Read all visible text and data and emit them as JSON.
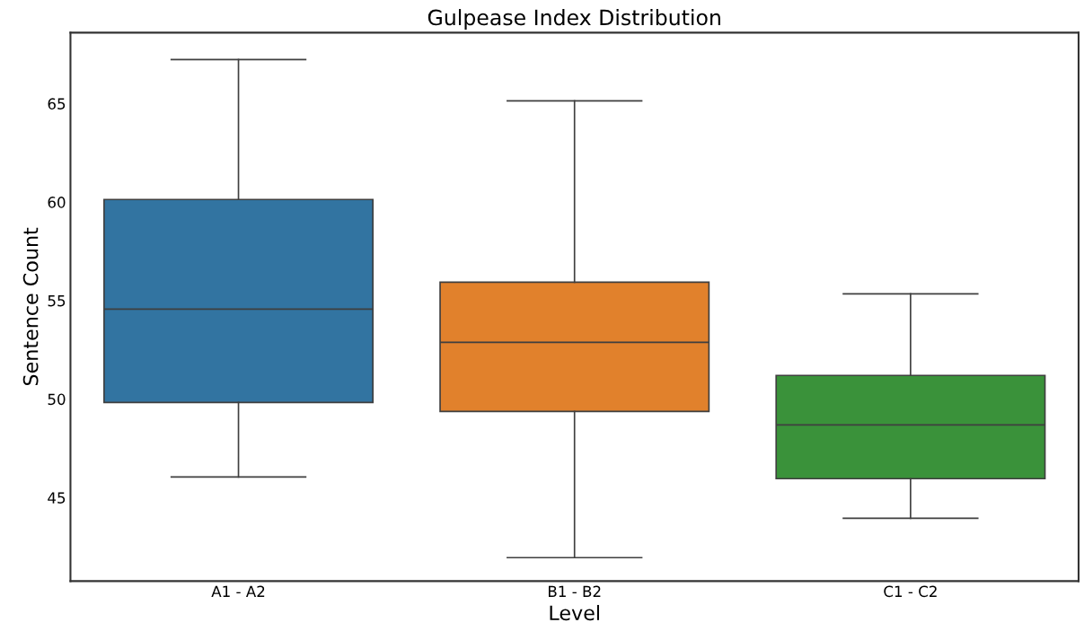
{
  "chart_data": {
    "type": "box",
    "title": "Gulpease Index Distribution",
    "xlabel": "Level",
    "ylabel": "Sentence Count",
    "categories": [
      "A1 - A2",
      "B1 - B2",
      "C1 - C2"
    ],
    "colors": [
      "#3274a1",
      "#e1812c",
      "#3a923a"
    ],
    "boxes": [
      {
        "low": 46.05,
        "q1": 49.83,
        "median": 54.57,
        "q3": 60.13,
        "high": 67.23
      },
      {
        "low": 41.95,
        "q1": 49.37,
        "median": 52.88,
        "q3": 55.93,
        "high": 65.14
      },
      {
        "low": 43.95,
        "q1": 45.96,
        "median": 48.69,
        "q3": 51.2,
        "high": 55.34
      }
    ],
    "ylim": [
      40.76,
      68.6
    ],
    "yticks": [
      45,
      50,
      55,
      60,
      65
    ],
    "grid": false
  }
}
